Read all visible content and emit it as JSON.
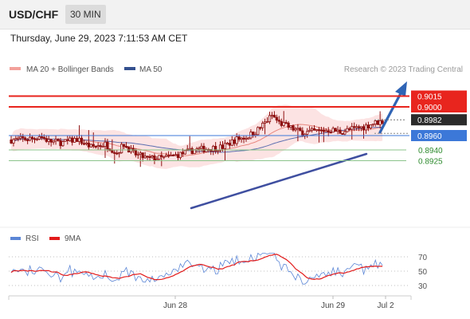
{
  "header": {
    "symbol": "USD/CHF",
    "interval": "30 MIN",
    "datetime": "Thursday, June 29, 2023 7:11:53 AM CET"
  },
  "legend": {
    "ma20": "MA 20 + Bollinger Bands",
    "ma50": "MA 50",
    "credit": "Research © 2023 Trading Central",
    "rsi": "RSI",
    "rsi_ma": "9MA"
  },
  "colors": {
    "resistance": "#e8251e",
    "last_price": "#2b2b2b",
    "pivot": "#3c78d8",
    "support_text": "#2e8b2e",
    "support_line": "#8bc48b",
    "candle": "#8e1010",
    "bollinger_fill": "#fbdada",
    "ma20": "#e8877f",
    "ma50": "#5c6fb0",
    "trendline": "#3f4fa0",
    "arrow": "#2f64b5",
    "rsi": "#5b86d6",
    "rsi_ma": "#e21b1b"
  },
  "chart_data": [
    {
      "type": "candlestick",
      "title": "USD/CHF",
      "interval": "30 MIN",
      "x_tick_labels": [
        "Jun 28",
        "Jun 29",
        "Jul 2"
      ],
      "levels": [
        {
          "label": "0.9015",
          "value": 0.9015,
          "kind": "resistance"
        },
        {
          "label": "0.9000",
          "value": 0.9,
          "kind": "resistance"
        },
        {
          "label": "0.8982",
          "value": 0.8982,
          "kind": "last"
        },
        {
          "label": "0.8960",
          "value": 0.896,
          "kind": "pivot"
        },
        {
          "label": "0.8940",
          "value": 0.894,
          "kind": "support"
        },
        {
          "label": "0.8925",
          "value": 0.8925,
          "kind": "support"
        }
      ],
      "series": [
        {
          "name": "MA 20 + Bollinger Bands"
        },
        {
          "name": "MA 50"
        }
      ],
      "grid": false,
      "legend_position": "top"
    },
    {
      "type": "line",
      "series": [
        {
          "name": "RSI"
        },
        {
          "name": "9MA"
        }
      ],
      "y_ticks": [
        70,
        50,
        30
      ],
      "ylim": [
        20,
        80
      ],
      "grid": true
    }
  ]
}
